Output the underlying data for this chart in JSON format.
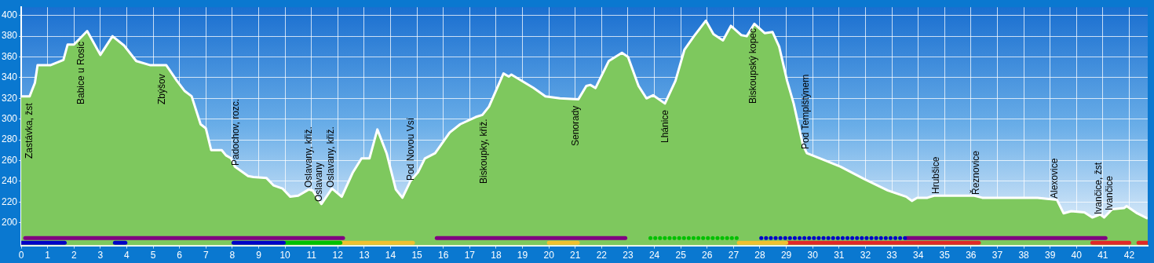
{
  "chart_data": {
    "type": "area",
    "x": [
      0,
      0.32,
      0.52,
      0.62,
      0.72,
      1.1,
      1.6,
      1.76,
      2.0,
      2.5,
      3.0,
      3.46,
      3.9,
      4.36,
      4.9,
      5.5,
      5.9,
      6.2,
      6.46,
      6.8,
      7.0,
      7.2,
      7.6,
      7.76,
      7.96,
      8.1,
      8.6,
      8.8,
      9.3,
      9.56,
      9.9,
      10.2,
      10.5,
      10.9,
      11.05,
      11.38,
      11.78,
      12.15,
      12.56,
      12.9,
      13.2,
      13.5,
      13.85,
      14.2,
      14.45,
      14.75,
      15.05,
      15.3,
      15.69,
      16.24,
      16.64,
      17.23,
      17.48,
      17.73,
      18.28,
      18.48,
      18.58,
      19.42,
      19.87,
      20.42,
      21.12,
      21.42,
      21.57,
      21.77,
      22.27,
      22.77,
      23.0,
      23.4,
      23.7,
      23.95,
      24.4,
      24.8,
      25.14,
      25.5,
      25.95,
      26.24,
      26.6,
      26.9,
      27.3,
      27.5,
      27.79,
      28.18,
      28.48,
      28.73,
      29.03,
      29.28,
      29.63,
      29.78,
      30.38,
      31.06,
      31.96,
      32.85,
      33.55,
      33.76,
      33.96,
      34.35,
      34.6,
      36.13,
      36.43,
      38.52,
      39.26,
      39.51,
      39.8,
      40.3,
      40.6,
      40.9,
      41.05,
      41.35,
      41.8,
      41.9,
      42.3,
      42.7
    ],
    "series": [
      {
        "color": "#7ec85e",
        "values": [
          322,
          322,
          335,
          352,
          352,
          352,
          357,
          372,
          372,
          385,
          362,
          380,
          371,
          356,
          352,
          352,
          337,
          327,
          322,
          295,
          291,
          270,
          270,
          265,
          262,
          254,
          245,
          244,
          243,
          236,
          233,
          225,
          226,
          232,
          231,
          218,
          233,
          225,
          248,
          262,
          262,
          290,
          267,
          232,
          224,
          240,
          249,
          262,
          267,
          287,
          295,
          302,
          304,
          312,
          344,
          341,
          343,
          330,
          322,
          320,
          319,
          332,
          333,
          330,
          356,
          364,
          360,
          332,
          320,
          323,
          315,
          337,
          367,
          380,
          395,
          382,
          376,
          390,
          381,
          380,
          392,
          383,
          384,
          370,
          337,
          315,
          275,
          267,
          261,
          254,
          242,
          231,
          225,
          221,
          224,
          224,
          226,
          226,
          224,
          224,
          222,
          209,
          211,
          210,
          205,
          208,
          205,
          213,
          214,
          216,
          209,
          204
        ]
      },
      {
        "type": "line",
        "color": "#0000c8",
        "x": [
          0,
          1.65
        ],
        "values": [
          180.5,
          180.5
        ]
      },
      {
        "type": "line",
        "color": "#0000c8",
        "x": [
          3.55,
          3.95
        ],
        "values": [
          180.5,
          180.5
        ]
      },
      {
        "type": "line",
        "color": "#0000c8",
        "x": [
          8.05,
          9.95
        ],
        "values": [
          180.5,
          180.5
        ]
      },
      {
        "type": "line",
        "color": "#00c000",
        "x": [
          10.0,
          12.1
        ],
        "values": [
          180.5,
          180.5
        ]
      },
      {
        "type": "line",
        "color": "#f0c030",
        "x": [
          12.1,
          14.85
        ],
        "values": [
          180.5,
          180.5
        ]
      },
      {
        "type": "line",
        "color": "#f0c030",
        "x": [
          20.0,
          21.1
        ],
        "values": [
          180.5,
          180.5
        ]
      },
      {
        "type": "line",
        "color": "#f0c030",
        "x": [
          27.2,
          29.0
        ],
        "values": [
          180.5,
          180.5
        ]
      },
      {
        "type": "line",
        "color": "#e02828",
        "x": [
          29.0,
          36.3
        ],
        "values": [
          180.5,
          180.5
        ]
      },
      {
        "type": "line",
        "color": "#e02828",
        "x": [
          40.6,
          42.0
        ],
        "values": [
          180.5,
          180.5
        ]
      },
      {
        "type": "line",
        "color": "#e02828",
        "x": [
          42.35,
          42.7
        ],
        "values": [
          180.5,
          180.5
        ]
      },
      {
        "type": "line",
        "color": "#800080",
        "x": [
          0.15,
          12.2
        ],
        "values": [
          185,
          185
        ]
      },
      {
        "type": "line",
        "color": "#800080",
        "x": [
          15.75,
          22.9
        ],
        "values": [
          185,
          185
        ]
      },
      {
        "type": "line",
        "color": "#00c000",
        "x": [
          23.85,
          27.2
        ],
        "values": [
          185,
          185
        ],
        "line_style": "dotted"
      },
      {
        "type": "line",
        "color": "#0000c8",
        "x": [
          28.05,
          33.55
        ],
        "values": [
          185,
          185
        ],
        "line_style": "dotted"
      },
      {
        "type": "line",
        "color": "#800080",
        "x": [
          33.55,
          41.1
        ],
        "values": [
          185,
          185
        ]
      }
    ],
    "xlim": [
      0,
      42.7
    ],
    "xticks": [
      0,
      1,
      2,
      3,
      4,
      5,
      6,
      7,
      8,
      9,
      10,
      11,
      12,
      13,
      14,
      15,
      16,
      17,
      18,
      19,
      20,
      21,
      22,
      23,
      24,
      25,
      26,
      27,
      28,
      29,
      30,
      31,
      32,
      33,
      34,
      35,
      36,
      37,
      38,
      39,
      40,
      41,
      42
    ],
    "ylim": [
      178,
      408
    ],
    "yticks": [
      200,
      220,
      240,
      260,
      280,
      300,
      320,
      340,
      360,
      380,
      400
    ],
    "grid": true,
    "marker": "none",
    "annotations": [
      "Zastávka, žst",
      "Babice u Rosic",
      "Zbýšov",
      "Padochov, rozc.",
      "Oslavany, křiž.",
      "Oslavany",
      "Oslavany, křiž.",
      "Pod Novou Vsí",
      "Biskoupky, křiž.",
      "Senorady",
      "Lhánice",
      "Biskoupský kopec",
      "Pod Templštýnem",
      "Hrubšice",
      "Řeznovice",
      "Alexovice",
      "Ivančice, žst",
      "Ivančice"
    ]
  }
}
